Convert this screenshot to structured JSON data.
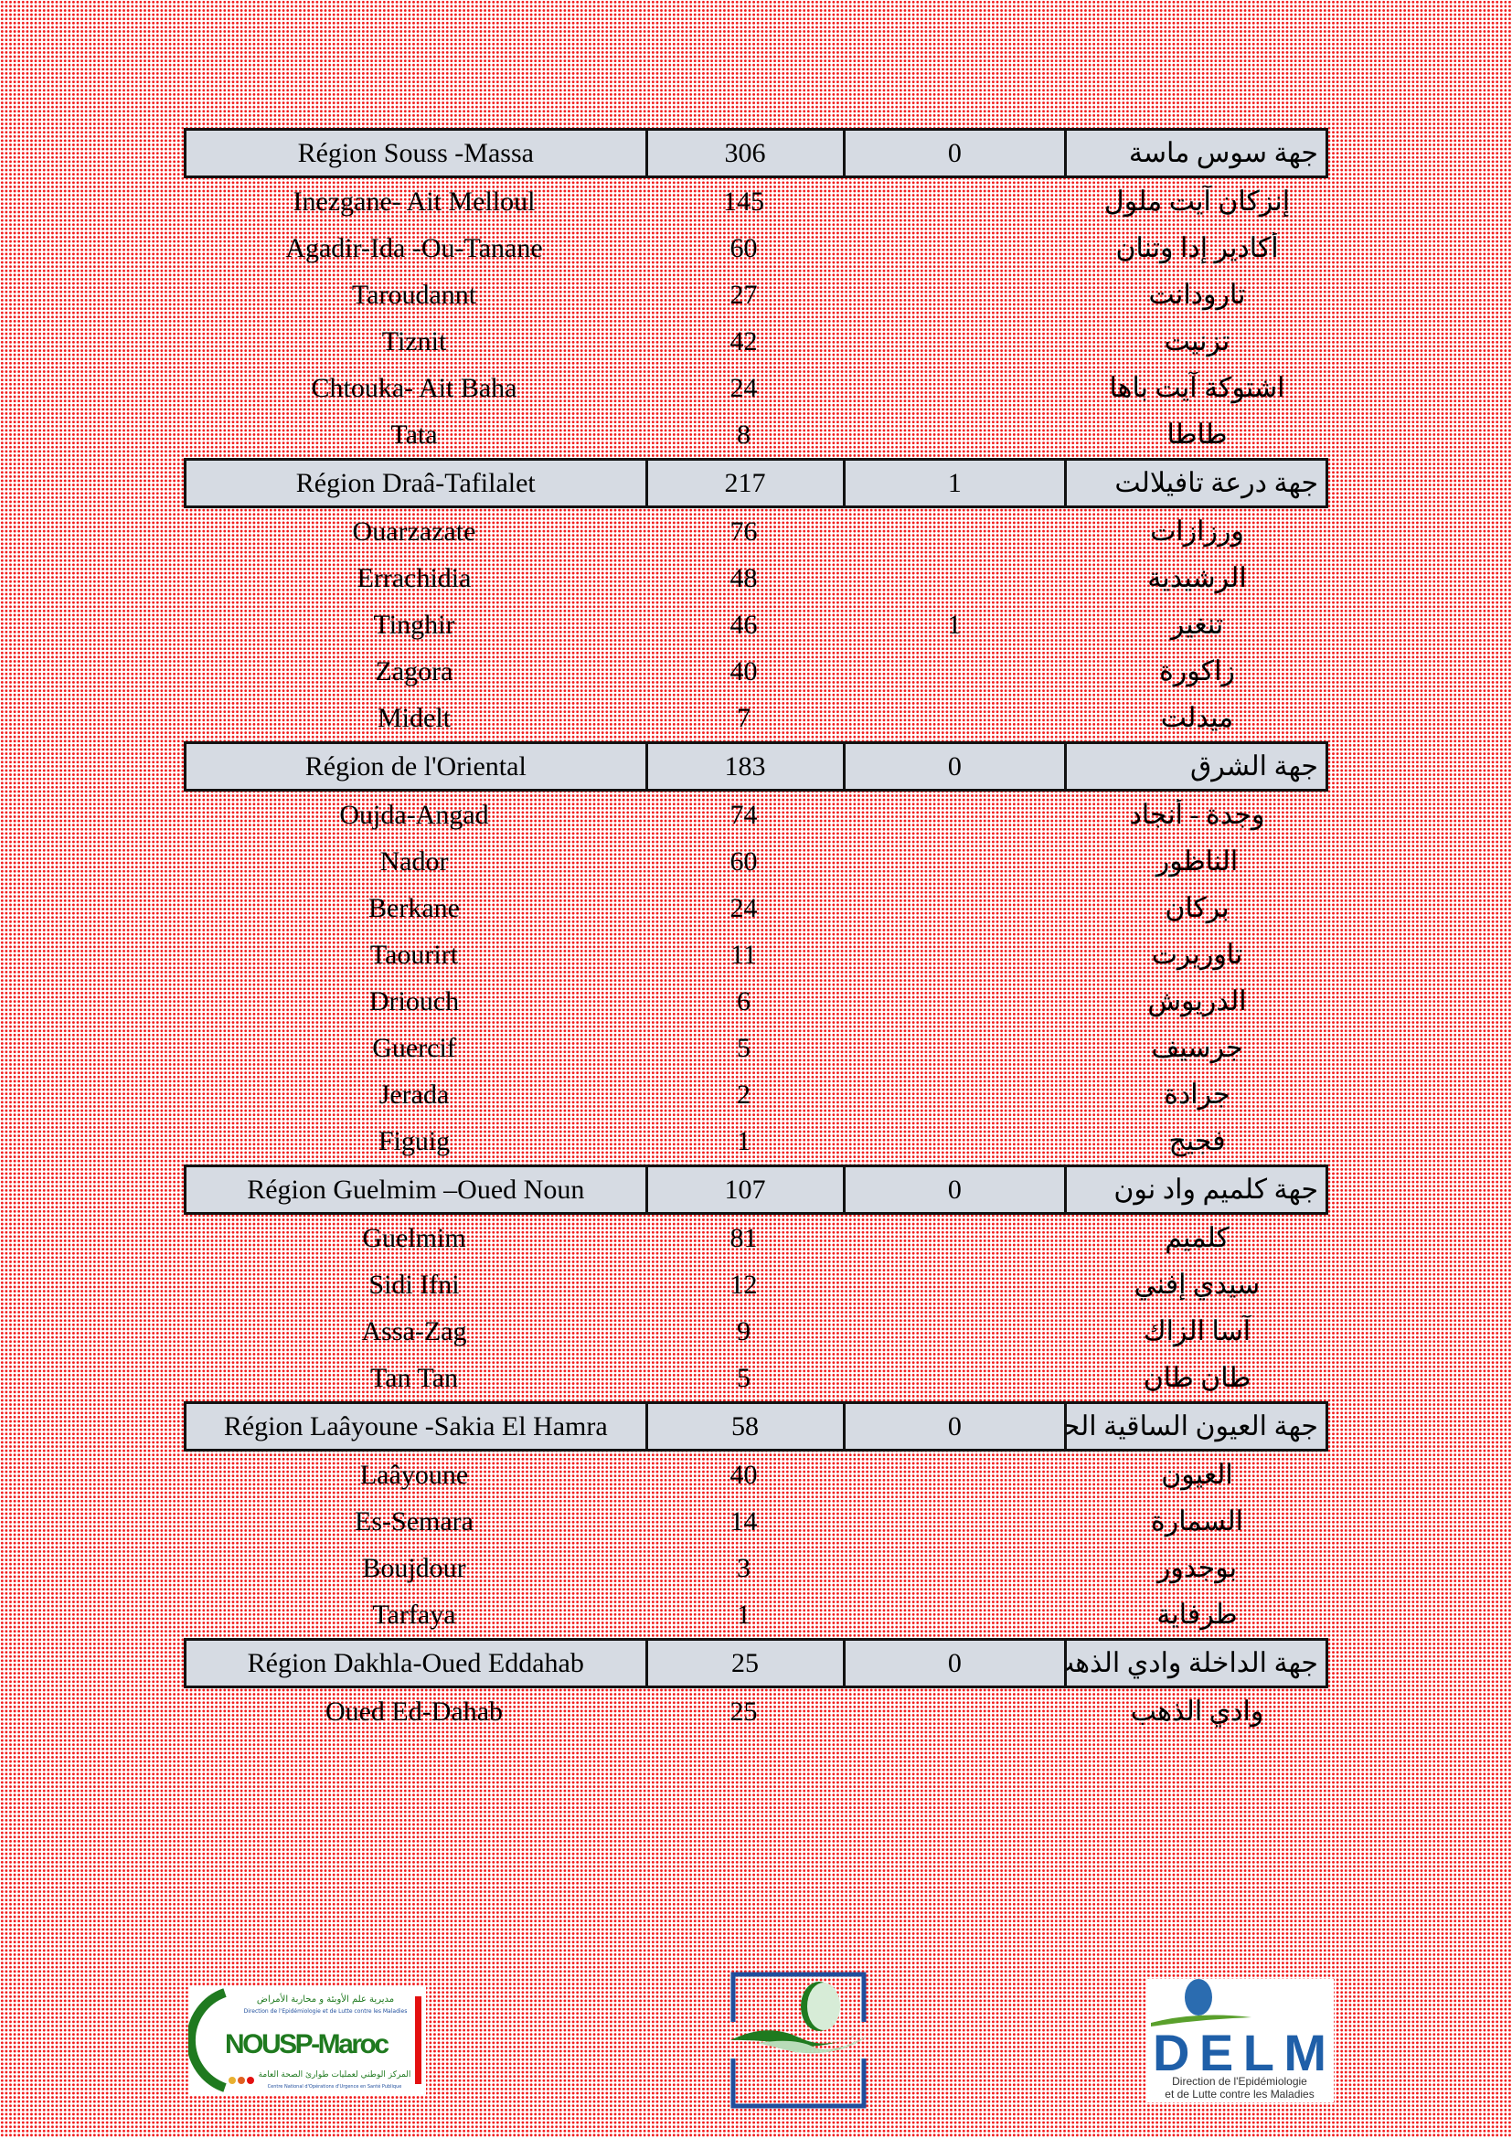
{
  "regions": [
    {
      "name_fr": "Région Souss -Massa",
      "total": "306",
      "col3": "0",
      "name_ar": "جهة سوس ماسة",
      "districts": [
        {
          "name_fr": "Inezgane- Ait Melloul",
          "total": "145",
          "col3": "",
          "name_ar": "إنزكان آيت ملول"
        },
        {
          "name_fr": "Agadir-Ida -Ou-Tanane",
          "total": "60",
          "col3": "",
          "name_ar": "أكادير إدا وتنان"
        },
        {
          "name_fr": "Taroudannt",
          "total": "27",
          "col3": "",
          "name_ar": "تارودانت"
        },
        {
          "name_fr": "Tiznit",
          "total": "42",
          "col3": "",
          "name_ar": "تزنيت"
        },
        {
          "name_fr": "Chtouka- Ait Baha",
          "total": "24",
          "col3": "",
          "name_ar": "اشتوكة آيت باها"
        },
        {
          "name_fr": "Tata",
          "total": "8",
          "col3": "",
          "name_ar": "طاطا"
        }
      ]
    },
    {
      "name_fr": "Région Draâ-Tafilalet",
      "total": "217",
      "col3": "1",
      "name_ar": "جهة درعة تافيلالت",
      "districts": [
        {
          "name_fr": "Ouarzazate",
          "total": "76",
          "col3": "",
          "name_ar": "ورزازات"
        },
        {
          "name_fr": "Errachidia",
          "total": "48",
          "col3": "",
          "name_ar": "الرشيدية"
        },
        {
          "name_fr": "Tinghir",
          "total": "46",
          "col3": "1",
          "name_ar": "تنغير"
        },
        {
          "name_fr": "Zagora",
          "total": "40",
          "col3": "",
          "name_ar": "زاكورة"
        },
        {
          "name_fr": "Midelt",
          "total": "7",
          "col3": "",
          "name_ar": "ميدلت"
        }
      ]
    },
    {
      "name_fr": "Région de l'Oriental",
      "total": "183",
      "col3": "0",
      "name_ar": "جهة الشرق",
      "districts": [
        {
          "name_fr": "Oujda-Angad",
          "total": "74",
          "col3": "",
          "name_ar": "وجدة - أنجاد"
        },
        {
          "name_fr": "Nador",
          "total": "60",
          "col3": "",
          "name_ar": "الناظور"
        },
        {
          "name_fr": "Berkane",
          "total": "24",
          "col3": "",
          "name_ar": "بركان"
        },
        {
          "name_fr": "Taourirt",
          "total": "11",
          "col3": "",
          "name_ar": "تاوريرت"
        },
        {
          "name_fr": "Driouch",
          "total": "6",
          "col3": "",
          "name_ar": "الدريوش"
        },
        {
          "name_fr": "Guercif",
          "total": "5",
          "col3": "",
          "name_ar": "جرسيف"
        },
        {
          "name_fr": "Jerada",
          "total": "2",
          "col3": "",
          "name_ar": "جرادة"
        },
        {
          "name_fr": "Figuig",
          "total": "1",
          "col3": "",
          "name_ar": "فجيج"
        }
      ]
    },
    {
      "name_fr": "Région Guelmim –Oued Noun",
      "total": "107",
      "col3": "0",
      "name_ar": "جهة كلميم واد نون",
      "districts": [
        {
          "name_fr": "Guelmim",
          "total": "81",
          "col3": "",
          "name_ar": "كلميم"
        },
        {
          "name_fr": "Sidi Ifni",
          "total": "12",
          "col3": "",
          "name_ar": "سيدي إفني"
        },
        {
          "name_fr": "Assa-Zag",
          "total": "9",
          "col3": "",
          "name_ar": "آسا الزاك"
        },
        {
          "name_fr": "Tan Tan",
          "total": "5",
          "col3": "",
          "name_ar": "طان طان"
        }
      ]
    },
    {
      "name_fr": "Région Laâyoune -Sakia El Hamra",
      "total": "58",
      "col3": "0",
      "name_ar": "جهة العيون الساقية الحمراء",
      "districts": [
        {
          "name_fr": "Laâyoune",
          "total": "40",
          "col3": "",
          "name_ar": "العيون"
        },
        {
          "name_fr": "Es-Semara",
          "total": "14",
          "col3": "",
          "name_ar": "السمارة"
        },
        {
          "name_fr": "Boujdour",
          "total": "3",
          "col3": "",
          "name_ar": "بوجدور"
        },
        {
          "name_fr": "Tarfaya",
          "total": "1",
          "col3": "",
          "name_ar": "طرفاية"
        }
      ]
    },
    {
      "name_fr": "Région Dakhla-Oued Eddahab",
      "total": "25",
      "col3": "0",
      "name_ar": "جهة الداخلة وادي الذهب",
      "districts": [
        {
          "name_fr": "Oued Ed-Dahab",
          "total": "25",
          "col3": "",
          "name_ar": "وادي الذهب"
        }
      ]
    }
  ],
  "logos": {
    "nousp": {
      "title": "NOUSP-Maroc",
      "ar_top": "مديرية علم الأوبئة و محاربة الأمراض",
      "fr_top": "Direction de l'Epidémiologie et de Lutte contre les Maladies",
      "ar_bottom": "المركز الوطني لعمليات طوارئ الصحة العامة",
      "fr_bottom": "Centre National d'Opérations d'Urgence en Santé Publique"
    },
    "delm": {
      "title": "DELM",
      "line1": "Direction de l'Epidémiologie",
      "line2": "et de Lutte contre les Maladies"
    }
  },
  "colors": {
    "background_dots": "#f21c1c",
    "header_fill": "#d6dbe3",
    "logo_green": "#1f7a1f",
    "logo_blue": "#1f4e9c"
  }
}
